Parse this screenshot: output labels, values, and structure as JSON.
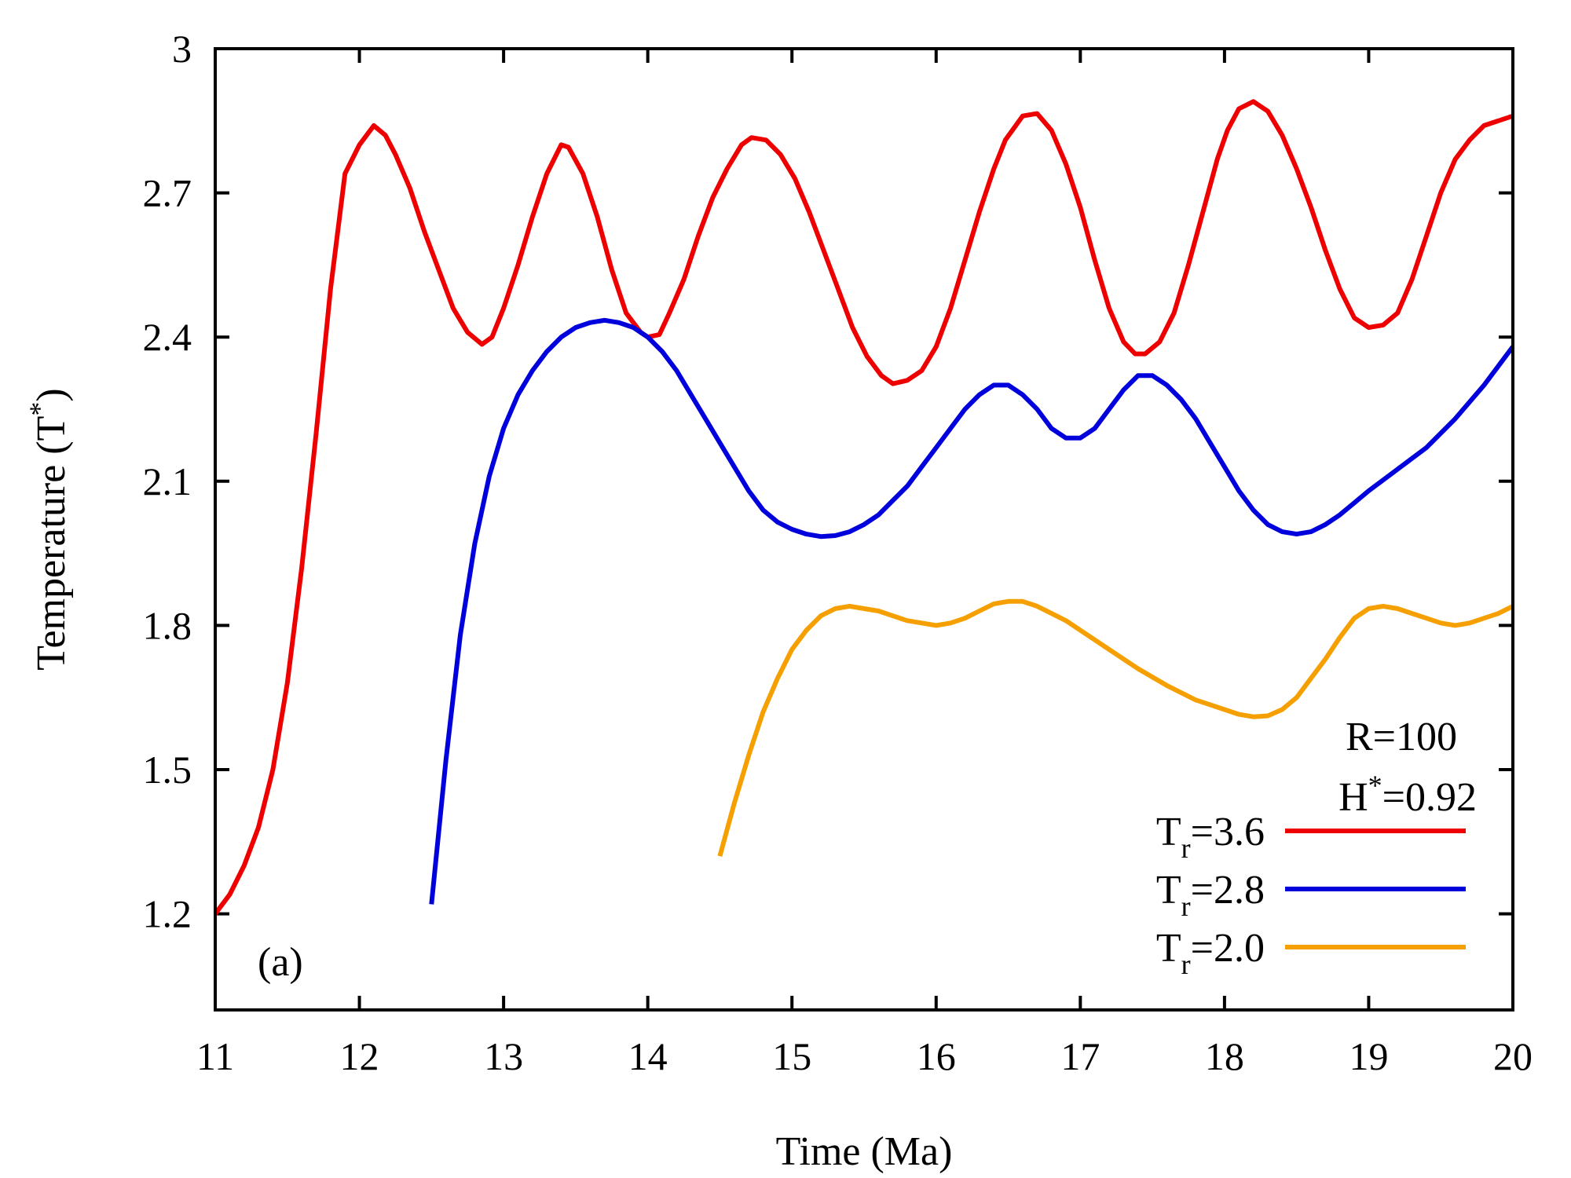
{
  "chart_data": {
    "type": "line",
    "xlabel": "Time (Ma)",
    "ylabel": {
      "main": "Temperature (T",
      "sup": "*",
      "close": ")"
    },
    "xlim": [
      11,
      20
    ],
    "ylim": [
      1.0,
      3.0
    ],
    "xticks": [
      11,
      12,
      13,
      14,
      15,
      16,
      17,
      18,
      19,
      20
    ],
    "yticks": [
      1.2,
      1.5,
      1.8,
      2.1,
      2.4,
      2.7,
      3.0
    ],
    "xtick_labels": [
      "11",
      "12",
      "13",
      "14",
      "15",
      "16",
      "17",
      "18",
      "19",
      "20"
    ],
    "ytick_labels": [
      "1.2",
      "1.5",
      "1.8",
      "2.1",
      "2.4",
      "2.7",
      "3"
    ],
    "panel_label": "(a)",
    "annotation": {
      "line1": "R=100",
      "line2_main": "H",
      "line2_sup": "*",
      "line2_rest": "=0.92"
    },
    "legend_position": "bottom-right",
    "series": [
      {
        "name": "Tr=3.6",
        "label_main": "T",
        "label_sub": "r",
        "label_rest": "=3.6",
        "color": "#ee0000",
        "x": [
          11.0,
          11.1,
          11.2,
          11.3,
          11.4,
          11.5,
          11.6,
          11.7,
          11.8,
          11.9,
          12.0,
          12.1,
          12.18,
          12.25,
          12.35,
          12.45,
          12.55,
          12.65,
          12.75,
          12.85,
          12.92,
          13.0,
          13.1,
          13.2,
          13.3,
          13.4,
          13.45,
          13.55,
          13.65,
          13.75,
          13.85,
          13.95,
          14.0,
          14.08,
          14.15,
          14.25,
          14.35,
          14.45,
          14.55,
          14.65,
          14.72,
          14.82,
          14.92,
          15.02,
          15.12,
          15.22,
          15.32,
          15.42,
          15.52,
          15.62,
          15.7,
          15.8,
          15.9,
          16.0,
          16.1,
          16.2,
          16.3,
          16.4,
          16.48,
          16.6,
          16.7,
          16.8,
          16.9,
          17.0,
          17.1,
          17.2,
          17.3,
          17.38,
          17.45,
          17.55,
          17.65,
          17.75,
          17.85,
          17.95,
          18.02,
          18.1,
          18.2,
          18.3,
          18.4,
          18.5,
          18.6,
          18.7,
          18.8,
          18.9,
          19.0,
          19.1,
          19.2,
          19.3,
          19.4,
          19.5,
          19.6,
          19.7,
          19.8,
          19.9,
          20.0
        ],
        "y": [
          1.2,
          1.24,
          1.3,
          1.38,
          1.5,
          1.68,
          1.92,
          2.2,
          2.5,
          2.74,
          2.8,
          2.84,
          2.82,
          2.78,
          2.71,
          2.62,
          2.54,
          2.46,
          2.41,
          2.385,
          2.4,
          2.46,
          2.55,
          2.65,
          2.74,
          2.8,
          2.795,
          2.74,
          2.65,
          2.54,
          2.45,
          2.41,
          2.4,
          2.405,
          2.45,
          2.52,
          2.61,
          2.69,
          2.75,
          2.8,
          2.815,
          2.81,
          2.78,
          2.73,
          2.66,
          2.58,
          2.5,
          2.42,
          2.36,
          2.32,
          2.303,
          2.31,
          2.33,
          2.38,
          2.46,
          2.56,
          2.66,
          2.75,
          2.81,
          2.86,
          2.865,
          2.83,
          2.76,
          2.67,
          2.56,
          2.46,
          2.39,
          2.365,
          2.365,
          2.39,
          2.45,
          2.55,
          2.66,
          2.77,
          2.83,
          2.875,
          2.89,
          2.87,
          2.82,
          2.75,
          2.67,
          2.58,
          2.5,
          2.44,
          2.42,
          2.425,
          2.45,
          2.52,
          2.61,
          2.7,
          2.77,
          2.81,
          2.84,
          2.85,
          2.86
        ]
      },
      {
        "name": "Tr=2.8",
        "label_main": "T",
        "label_sub": "r",
        "label_rest": "=2.8",
        "color": "#0000dd",
        "x": [
          12.5,
          12.6,
          12.7,
          12.8,
          12.9,
          13.0,
          13.1,
          13.2,
          13.3,
          13.4,
          13.5,
          13.6,
          13.7,
          13.8,
          13.9,
          14.0,
          14.1,
          14.2,
          14.3,
          14.4,
          14.5,
          14.6,
          14.7,
          14.8,
          14.9,
          15.0,
          15.1,
          15.2,
          15.3,
          15.4,
          15.5,
          15.6,
          15.7,
          15.8,
          15.9,
          16.0,
          16.1,
          16.2,
          16.3,
          16.4,
          16.5,
          16.6,
          16.7,
          16.8,
          16.9,
          17.0,
          17.1,
          17.2,
          17.3,
          17.4,
          17.5,
          17.6,
          17.7,
          17.8,
          17.9,
          18.0,
          18.1,
          18.2,
          18.3,
          18.4,
          18.5,
          18.6,
          18.7,
          18.8,
          18.9,
          19.0,
          19.2,
          19.4,
          19.6,
          19.8,
          20.0
        ],
        "y": [
          1.22,
          1.52,
          1.78,
          1.97,
          2.11,
          2.21,
          2.28,
          2.33,
          2.37,
          2.4,
          2.42,
          2.43,
          2.435,
          2.43,
          2.42,
          2.4,
          2.37,
          2.33,
          2.28,
          2.23,
          2.18,
          2.13,
          2.08,
          2.04,
          2.015,
          2.0,
          1.99,
          1.985,
          1.987,
          1.995,
          2.01,
          2.03,
          2.06,
          2.09,
          2.13,
          2.17,
          2.21,
          2.25,
          2.28,
          2.3,
          2.3,
          2.28,
          2.25,
          2.21,
          2.19,
          2.19,
          2.21,
          2.25,
          2.29,
          2.32,
          2.32,
          2.3,
          2.27,
          2.23,
          2.18,
          2.13,
          2.08,
          2.04,
          2.01,
          1.995,
          1.99,
          1.995,
          2.01,
          2.03,
          2.055,
          2.08,
          2.125,
          2.17,
          2.23,
          2.3,
          2.38
        ]
      },
      {
        "name": "Tr=2.0",
        "label_main": "T",
        "label_sub": "r",
        "label_rest": "=2.0",
        "color": "#f5a000",
        "x": [
          14.5,
          14.6,
          14.7,
          14.8,
          14.9,
          15.0,
          15.1,
          15.2,
          15.3,
          15.4,
          15.5,
          15.6,
          15.7,
          15.8,
          15.9,
          16.0,
          16.1,
          16.2,
          16.3,
          16.4,
          16.5,
          16.6,
          16.7,
          16.8,
          16.9,
          17.0,
          17.2,
          17.4,
          17.6,
          17.8,
          18.0,
          18.1,
          18.2,
          18.3,
          18.4,
          18.5,
          18.6,
          18.7,
          18.8,
          18.9,
          19.0,
          19.1,
          19.2,
          19.3,
          19.4,
          19.5,
          19.6,
          19.7,
          19.8,
          19.9,
          20.0
        ],
        "y": [
          1.32,
          1.43,
          1.53,
          1.62,
          1.69,
          1.75,
          1.79,
          1.82,
          1.835,
          1.84,
          1.835,
          1.83,
          1.82,
          1.81,
          1.805,
          1.8,
          1.805,
          1.815,
          1.83,
          1.845,
          1.85,
          1.85,
          1.84,
          1.825,
          1.81,
          1.79,
          1.75,
          1.71,
          1.675,
          1.645,
          1.625,
          1.615,
          1.61,
          1.612,
          1.625,
          1.65,
          1.69,
          1.73,
          1.775,
          1.815,
          1.835,
          1.84,
          1.835,
          1.825,
          1.815,
          1.805,
          1.8,
          1.805,
          1.815,
          1.825,
          1.84
        ]
      }
    ]
  }
}
